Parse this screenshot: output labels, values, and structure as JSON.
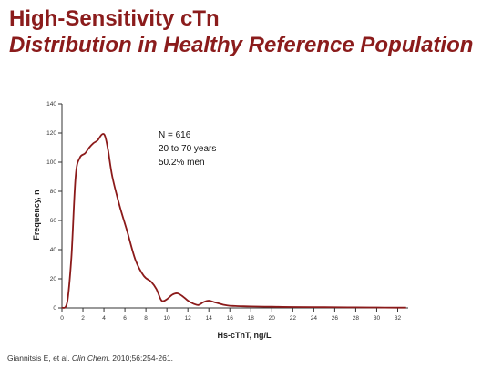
{
  "slide": {
    "title_line1": "High-Sensitivity cTn",
    "title_line2": "Distribution in Healthy Reference Population",
    "citation_authors": "Giannitsis E, et al. ",
    "citation_journal": "Clin Chem",
    "citation_rest": ". 2010;56:254-261."
  },
  "colors": {
    "title": "#8B1C1C",
    "curve": "#8B1A1A",
    "axis": "#333333"
  },
  "chart_data": {
    "type": "line",
    "xlabel": "Hs-cTnT, ng/L",
    "ylabel": "Frequency, n",
    "xlim": [
      0,
      33
    ],
    "ylim": [
      0,
      140
    ],
    "x_ticks": [
      0,
      2,
      4,
      6,
      8,
      10,
      12,
      14,
      16,
      18,
      20,
      22,
      24,
      26,
      28,
      30,
      32
    ],
    "y_ticks": [
      0,
      20,
      40,
      60,
      80,
      100,
      120,
      140
    ],
    "grid": false,
    "annotations": [
      "N = 616",
      "20 to 70 years",
      "50.2% men"
    ],
    "series": [
      {
        "x": [
          0,
          0.5,
          0.9,
          1.3,
          1.7,
          2.2,
          2.6,
          3.0,
          3.4,
          3.8,
          4.1,
          4.4,
          4.8,
          5.5,
          6.2,
          7.0,
          7.8,
          8.5,
          9.0,
          9.5,
          10.0,
          10.5,
          11.0,
          11.5,
          12.0,
          12.5,
          13.0,
          13.5,
          14.0,
          14.5,
          15.0,
          15.5,
          16.0,
          17.0,
          18.0,
          20.0,
          22.0,
          25.0,
          28.0,
          30.0,
          32.0,
          32.8
        ],
        "y": [
          0,
          4,
          35,
          90,
          103,
          106,
          110,
          113,
          115,
          119,
          118,
          108,
          90,
          70,
          53,
          33,
          22,
          18,
          13,
          5,
          6,
          9,
          10,
          8,
          5,
          3,
          2,
          4,
          5,
          4,
          3,
          2,
          1.5,
          1.2,
          1.0,
          0.8,
          0.6,
          0.5,
          0.4,
          0.3,
          0.2,
          0.2
        ]
      }
    ]
  }
}
